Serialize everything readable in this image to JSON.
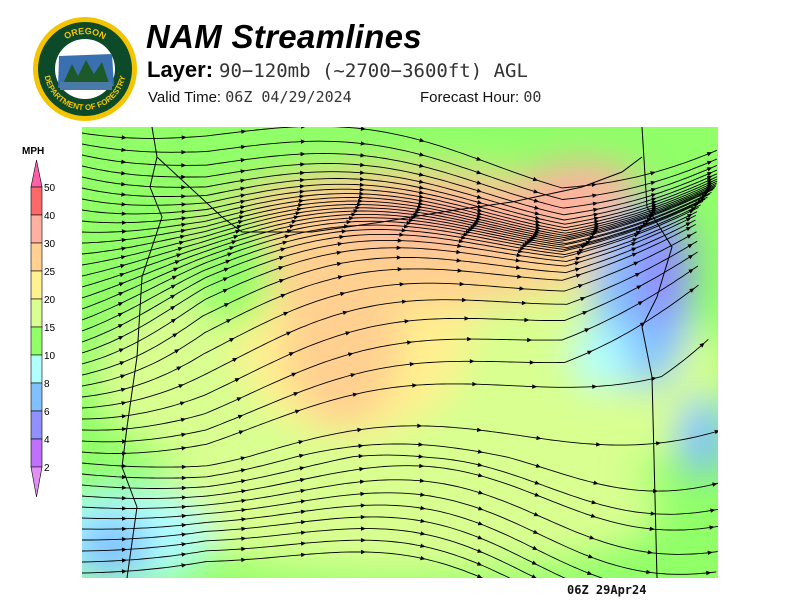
{
  "logo": {
    "text_top": "OREGON",
    "text_bottom": "DEPARTMENT OF FORESTRY"
  },
  "header": {
    "title": "NAM Streamlines",
    "layer_label": "Layer:",
    "layer_value": "90−120mb (~2700−3600ft) AGL",
    "valid_label": "Valid Time:",
    "valid_value": "06Z 04/29/2024",
    "forecast_label": "Forecast Hour:",
    "forecast_value": "00"
  },
  "legend": {
    "unit": "MPH",
    "levels": [
      "50",
      "40",
      "30",
      "25",
      "20",
      "15",
      "10",
      "8",
      "6",
      "4",
      "2"
    ],
    "colors": [
      "#ff60a8",
      "#ff6868",
      "#ffb0a0",
      "#ffd090",
      "#fff090",
      "#d8ff90",
      "#90ff68",
      "#b0ffff",
      "#80c0ff",
      "#9090ff",
      "#c070ff",
      "#e090f0"
    ]
  },
  "map": {
    "timestamp": "06Z 29Apr24",
    "streamline_color": "#000000"
  }
}
